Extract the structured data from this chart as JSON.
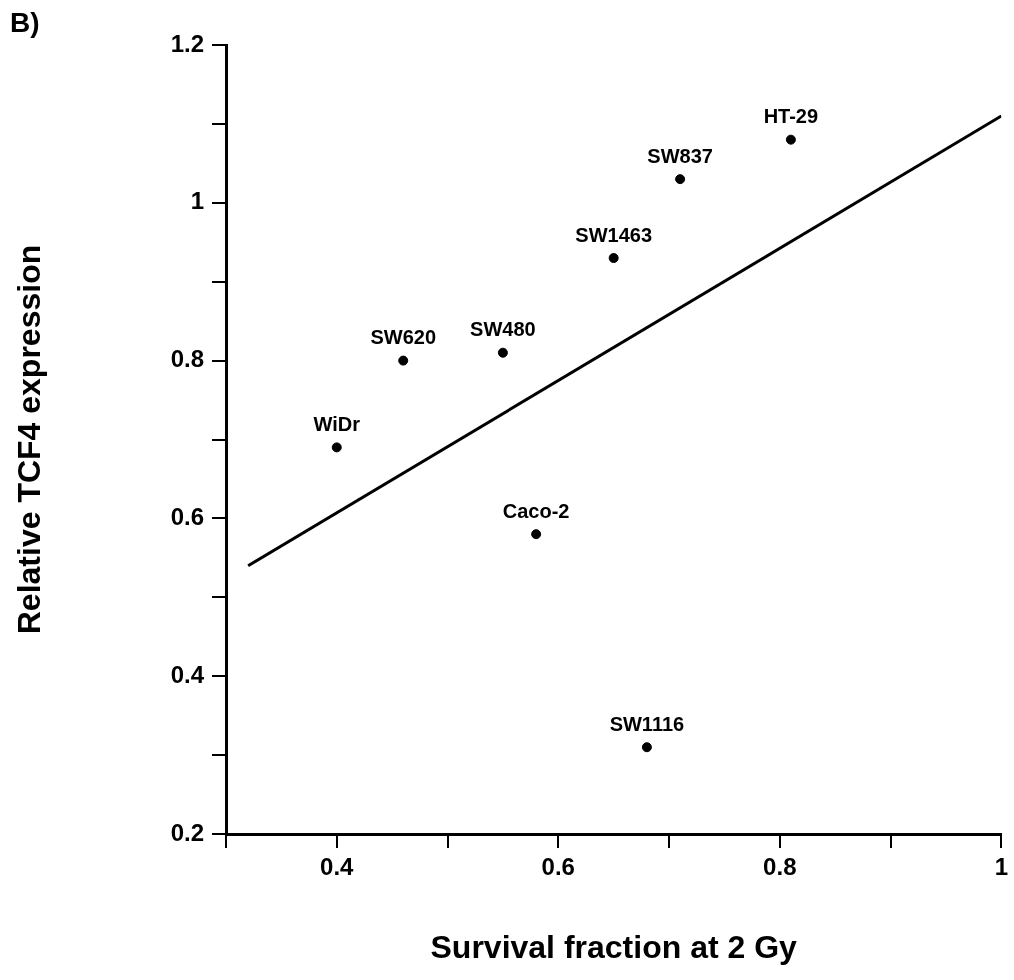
{
  "chart_data": {
    "type": "scatter",
    "title": "B)",
    "xlabel": "Survival fraction at 2 Gy",
    "ylabel": "Relative TCF4 expression",
    "xlim": [
      0.3,
      1
    ],
    "xticks": [
      {
        "value": 0.3,
        "label": null
      },
      0.4,
      {
        "value": 0.5,
        "label": null
      },
      0.6,
      {
        "value": 0.7,
        "label": null
      },
      0.8,
      {
        "value": 0.9,
        "label": null
      },
      1
    ],
    "ylim": [
      0.2,
      1.2
    ],
    "yticks": [
      0.2,
      {
        "value": 0.3,
        "label": null
      },
      0.4,
      {
        "value": 0.5,
        "label": null
      },
      0.6,
      {
        "value": 0.7,
        "label": null
      },
      0.8,
      {
        "value": 0.9,
        "label": null
      },
      1,
      {
        "value": 1.1,
        "label": null
      },
      1.2
    ],
    "grid": false,
    "legend": false,
    "series": [
      {
        "type": "scatter",
        "marker": "circle",
        "color": "#000000",
        "x": [
          0.4,
          0.46,
          0.55,
          0.58,
          0.68,
          0.65,
          0.71,
          0.81
        ],
        "values": [
          0.69,
          0.8,
          0.81,
          0.58,
          0.31,
          0.93,
          1.03,
          1.08
        ]
      },
      {
        "type": "line",
        "marker": "none",
        "color": "#000000",
        "x": [
          0.32,
          1
        ],
        "values": [
          0.54,
          1.11
        ]
      }
    ],
    "annotations": [
      {
        "text": "WiDr",
        "x": 0.4,
        "y": 0.69
      },
      {
        "text": "SW620",
        "x": 0.46,
        "y": 0.8
      },
      {
        "text": "SW480",
        "x": 0.55,
        "y": 0.81
      },
      {
        "text": "Caco-2",
        "x": 0.58,
        "y": 0.58
      },
      {
        "text": "SW1116",
        "x": 0.68,
        "y": 0.31
      },
      {
        "text": "SW1463",
        "x": 0.65,
        "y": 0.93
      },
      {
        "text": "SW837",
        "x": 0.71,
        "y": 1.03
      },
      {
        "text": "HT-29",
        "x": 0.81,
        "y": 1.08
      }
    ]
  }
}
